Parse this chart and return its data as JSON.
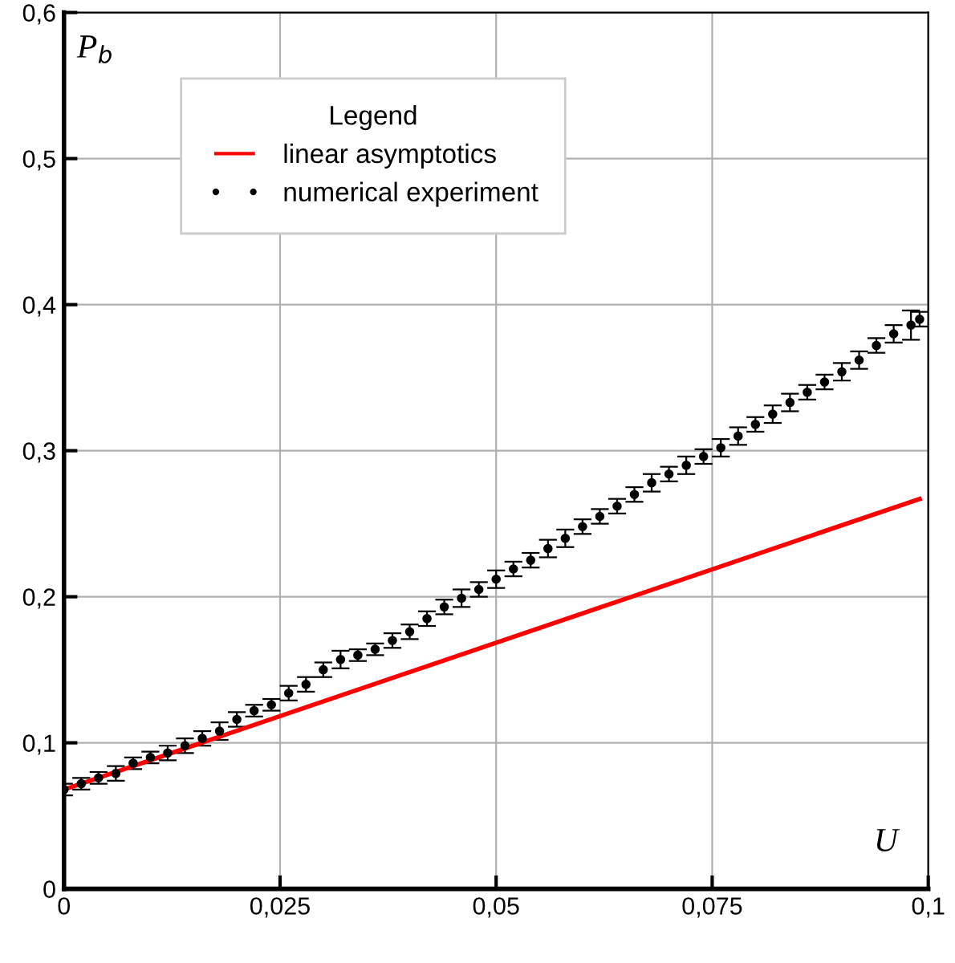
{
  "chart_data": {
    "type": "scatter",
    "xlabel": "U",
    "ylabel": "P$_{b}$",
    "legend_title": "Legend",
    "legend": "top left",
    "grid": true,
    "xlim": [
      0,
      0.1
    ],
    "ylim": [
      0,
      0.6
    ],
    "xticks": [
      0,
      {
        "value": 0.025,
        "label": "0,025"
      },
      {
        "value": 0.05,
        "label": "0,05"
      },
      {
        "value": 0.075,
        "label": "0,075"
      },
      {
        "value": 0.1,
        "label": "0,1"
      }
    ],
    "yticks": [
      0,
      {
        "value": 0.1,
        "label": "0,1"
      },
      {
        "value": 0.2,
        "label": "0,2"
      },
      {
        "value": 0.3,
        "label": "0,3"
      },
      {
        "value": 0.4,
        "label": "0,4"
      },
      {
        "value": 0.5,
        "label": "0,5"
      },
      {
        "value": 0.6,
        "label": "0,6"
      }
    ],
    "series": [
      {
        "name": "linear asymptotics",
        "type": "line",
        "color": "#ff0000",
        "marker": "none",
        "line_style": "solid",
        "x": [
          0,
          0.099
        ],
        "values": [
          0.068,
          0.267
        ]
      },
      {
        "name": "numerical experiment",
        "color": "#000000",
        "marker": "circle",
        "x": [
          0,
          0.002,
          0.004,
          0.006,
          0.008,
          0.01,
          0.012,
          0.014,
          0.016,
          0.018,
          0.02,
          0.022,
          0.024,
          0.026,
          0.028,
          0.03,
          0.032,
          0.034,
          0.036,
          0.038,
          0.04,
          0.042,
          0.044,
          0.046,
          0.048,
          0.05,
          0.052,
          0.054,
          0.056,
          0.058,
          0.06,
          0.062,
          0.064,
          0.066,
          0.068,
          0.07,
          0.072,
          0.074,
          0.076,
          0.078,
          0.08,
          0.082,
          0.084,
          0.086,
          0.088,
          0.09,
          0.092,
          0.094,
          0.096,
          0.098,
          0.099
        ],
        "values": [
          0.068,
          0.072,
          0.076,
          0.079,
          0.086,
          0.09,
          0.093,
          0.098,
          0.103,
          0.108,
          0.116,
          0.122,
          0.126,
          0.134,
          0.14,
          0.15,
          0.157,
          0.16,
          0.164,
          0.17,
          0.176,
          0.185,
          0.193,
          0.199,
          0.205,
          0.212,
          0.219,
          0.225,
          0.233,
          0.24,
          0.248,
          0.255,
          0.262,
          0.27,
          0.278,
          0.284,
          0.29,
          0.296,
          0.302,
          0.31,
          0.318,
          0.325,
          0.333,
          0.34,
          0.347,
          0.354,
          0.362,
          0.372,
          0.38,
          0.386,
          0.39
        ],
        "errors": [
          0.004,
          0.004,
          0.004,
          0.005,
          0.004,
          0.004,
          0.005,
          0.005,
          0.005,
          0.006,
          0.005,
          0.004,
          0.004,
          0.005,
          0.005,
          0.005,
          0.006,
          0.004,
          0.004,
          0.005,
          0.005,
          0.005,
          0.005,
          0.006,
          0.005,
          0.006,
          0.005,
          0.005,
          0.006,
          0.006,
          0.005,
          0.005,
          0.005,
          0.005,
          0.006,
          0.005,
          0.006,
          0.005,
          0.006,
          0.006,
          0.005,
          0.006,
          0.006,
          0.005,
          0.005,
          0.006,
          0.006,
          0.005,
          0.006,
          0.01,
          0.005
        ]
      }
    ]
  }
}
